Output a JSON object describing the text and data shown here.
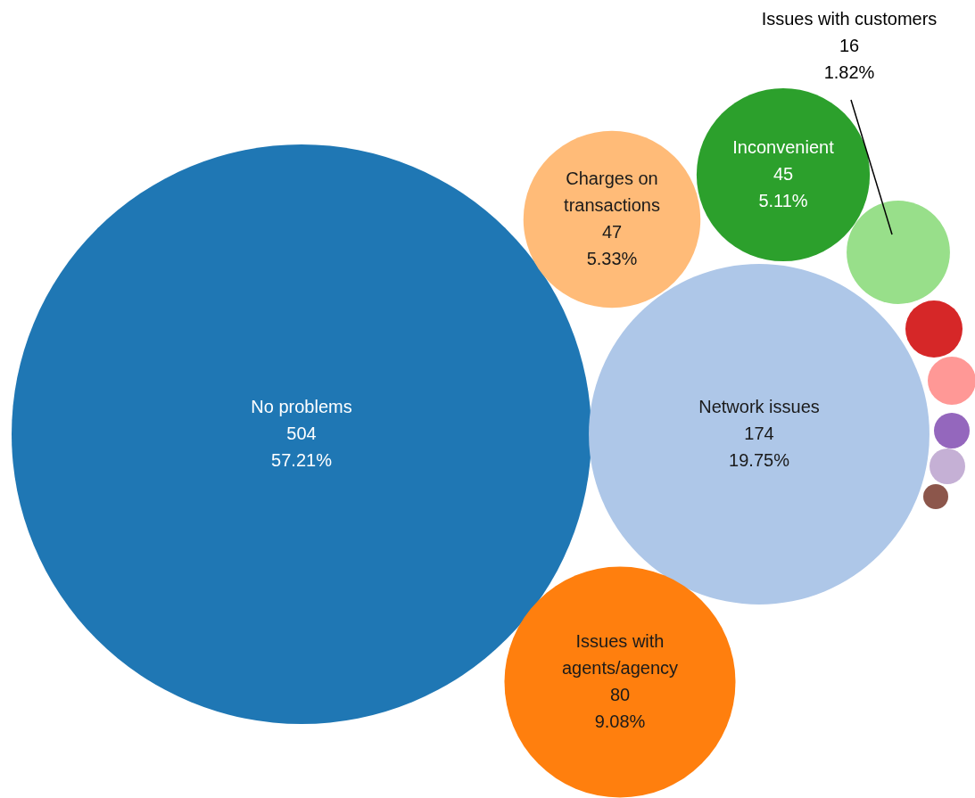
{
  "chart_data": {
    "type": "other",
    "categories": [
      "No problems",
      "Network issues",
      "Issues with agents/agency",
      "Charges on transactions",
      "Inconvenient",
      "Issues with customers",
      null,
      null,
      null,
      null,
      null
    ],
    "values": [
      504,
      174,
      80,
      47,
      45,
      16,
      null,
      null,
      null,
      null,
      null
    ],
    "colors": [
      "#1f77b4",
      "#aec7e8",
      "#ff7f0e",
      "#ffbb78",
      "#2ca02c",
      "#98df8a",
      "#d62728",
      "#ff9896",
      "#9467bd",
      "#c5b0d5",
      "#8c564b"
    ],
    "annotations": [
      {
        "text": "57.21%",
        "x": "No problems"
      },
      {
        "text": "19.75%",
        "x": "Network issues"
      },
      {
        "text": "9.08%",
        "x": "Issues with agents/agency"
      },
      {
        "text": "5.33%",
        "x": "Charges on transactions"
      },
      {
        "text": "5.11%",
        "x": "Inconvenient"
      },
      {
        "text": "1.82%",
        "x": "Issues with customers"
      }
    ],
    "data_labels": true
  }
}
